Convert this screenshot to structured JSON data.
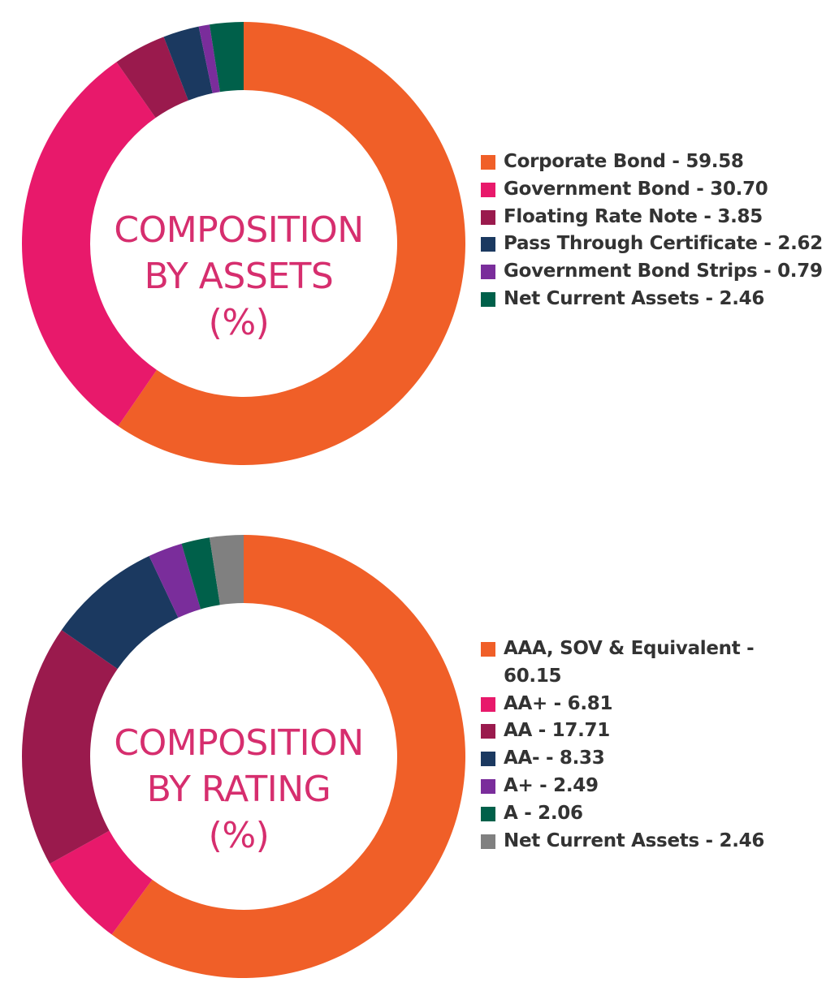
{
  "chart_data": [
    {
      "type": "pie",
      "variant": "donut",
      "title_lines": [
        "COMPOSITION",
        "BY ASSETS",
        "(%)"
      ],
      "categories": [
        "Corporate Bond",
        "Government Bond",
        "Floating Rate Note",
        "Pass Through Certificate",
        "Government Bond Strips",
        "Net Current Assets"
      ],
      "values": [
        59.58,
        30.7,
        3.85,
        2.62,
        0.79,
        2.46
      ],
      "colors": [
        "#f05f28",
        "#e8196b",
        "#9a1a4d",
        "#1b3960",
        "#7a2d9b",
        "#00604a"
      ],
      "legend_labels": [
        "Corporate Bond - 59.58",
        "Government Bond - 30.70",
        "Floating Rate Note - 3.85",
        "Pass Through Certificate - 2.62",
        "Government Bond Strips - 0.79",
        "Net Current Assets - 2.46"
      ],
      "legend_position": "right",
      "start_angle": "top",
      "direction": "clockwise"
    },
    {
      "type": "pie",
      "variant": "donut",
      "title_lines": [
        "COMPOSITION",
        "BY RATING",
        "(%)"
      ],
      "categories": [
        "AAA, SOV & Equivalent",
        "AA+",
        "AA",
        "AA-",
        "A+",
        "A",
        "Net Current Assets"
      ],
      "values": [
        60.15,
        6.81,
        17.71,
        8.33,
        2.49,
        2.06,
        2.46
      ],
      "colors": [
        "#f05f28",
        "#e8196b",
        "#9a1a4d",
        "#1b3960",
        "#7a2d9b",
        "#00604a",
        "#808080"
      ],
      "legend_labels": [
        "AAA, SOV & Equivalent - 60.15",
        "AA+ - 6.81",
        "AA - 17.71",
        "AA- - 8.33",
        "A+ - 2.49",
        "A - 2.06",
        "Net Current Assets - 2.46"
      ],
      "legend_position": "right",
      "start_angle": "top",
      "direction": "clockwise"
    }
  ]
}
